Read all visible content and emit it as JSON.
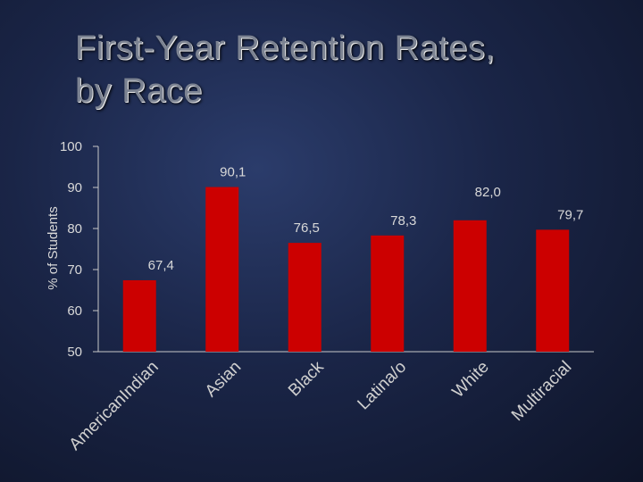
{
  "title_lines": [
    "First-Year Retention Rates,",
    "by Race"
  ],
  "chart_data": {
    "type": "bar",
    "ylabel": "% of Students",
    "ylim": [
      50,
      100
    ],
    "yticks": [
      50,
      60,
      70,
      80,
      90,
      100
    ],
    "categories": [
      "AmericanIndian",
      "Asian",
      "Black",
      "Latina/o",
      "White",
      "Multiracial"
    ],
    "values": [
      67.4,
      90.1,
      76.5,
      78.3,
      82.0,
      79.7
    ],
    "value_labels": [
      "67,4",
      "90,1",
      "76,5",
      "78,3",
      "82,0",
      "79,7"
    ],
    "bar_color": "#cc0000",
    "grid": false
  }
}
